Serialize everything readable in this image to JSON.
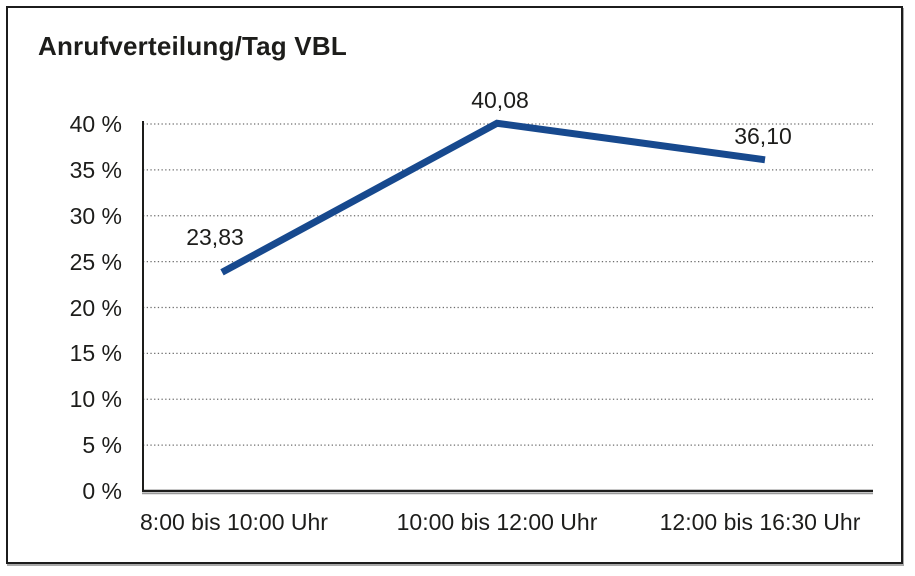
{
  "chart_data": {
    "type": "line",
    "title": "Anrufverteilung/Tag VBL",
    "categories": [
      "8:00 bis 10:00 Uhr",
      "10:00 bis 12:00 Uhr",
      "12:00 bis 16:30 Uhr"
    ],
    "values": [
      23.83,
      40.08,
      36.1
    ],
    "data_labels": [
      "23,83",
      "40,08",
      "36,10"
    ],
    "y_ticks": [
      0,
      5,
      10,
      15,
      20,
      25,
      30,
      35,
      40
    ],
    "y_tick_labels": [
      "0 %",
      "5 %",
      "10 %",
      "15 %",
      "20 %",
      "25 %",
      "30 %",
      "35 %",
      "40 %"
    ],
    "ylim": [
      0,
      40
    ],
    "xlabel": "",
    "ylabel": "",
    "grid": "dotted-horizontal",
    "legend": "none",
    "line_color": "#17498E",
    "grid_color": "#6e6e6e",
    "axis_color": "#1d1d1b",
    "text_color": "#1d1d1b"
  }
}
